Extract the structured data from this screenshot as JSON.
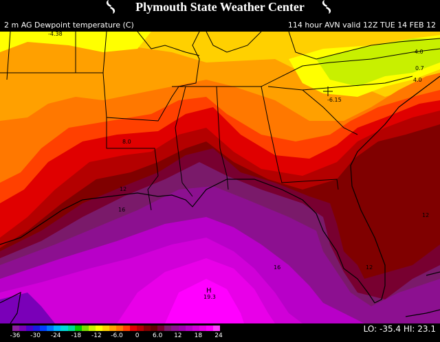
{
  "header": {
    "title": "Plymouth State Weather Center",
    "subtitle_left": "2 m AG Dewpoint temperature (C)",
    "subtitle_right": "114 hour AVN valid 12Z TUE 14 FEB 12"
  },
  "map": {
    "labels": [
      {
        "id": "label-neg4-38",
        "text": "-4.38"
      },
      {
        "id": "label-neg4-0",
        "text": "-4.0"
      },
      {
        "id": "label-0-7",
        "text": "0.7"
      },
      {
        "id": "label-4-0",
        "text": "4.0"
      },
      {
        "id": "label-neg6-15",
        "text": "-6.15"
      },
      {
        "id": "label-8-0",
        "text": "8.0"
      },
      {
        "id": "label-12a",
        "text": "12"
      },
      {
        "id": "label-16a",
        "text": "16"
      },
      {
        "id": "label-12b",
        "text": "12"
      },
      {
        "id": "label-16b",
        "text": "16"
      },
      {
        "id": "label-12c",
        "text": "12"
      },
      {
        "id": "label-h",
        "text": "H"
      },
      {
        "id": "label-19-3",
        "text": "19.3"
      }
    ]
  },
  "legend": {
    "colors": [
      "#8a1ea0",
      "#7a00b8",
      "#4a00cc",
      "#1a1ae0",
      "#0040ff",
      "#0078ff",
      "#00b4ff",
      "#00d8d8",
      "#00d890",
      "#00c800",
      "#78dc00",
      "#c8f000",
      "#ffff00",
      "#ffd000",
      "#ffa000",
      "#ff7800",
      "#ff4000",
      "#e00000",
      "#b40000",
      "#800000",
      "#640000",
      "#780030",
      "#7a1a6a",
      "#8c1090",
      "#a000b0",
      "#b800c8",
      "#d000d8",
      "#e800e8",
      "#ff00ff",
      "#ff40ff"
    ],
    "ticks": [
      "-36",
      "-30",
      "-24",
      "-18",
      "-12",
      "-6.0",
      "0",
      "6.0",
      "12",
      "18",
      "24"
    ],
    "lo_hi": "LO: -35.4   HI:  23.1"
  }
}
